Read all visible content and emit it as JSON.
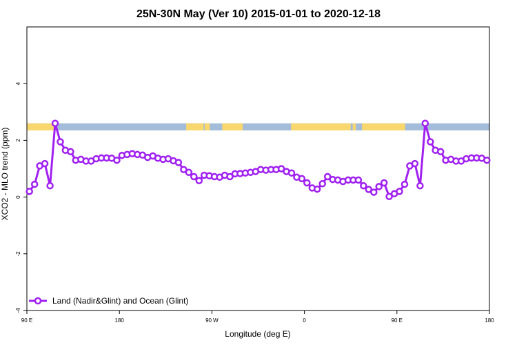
{
  "chart_data": {
    "type": "line",
    "title": "25N-30N May (Ver 10)   2015-01-01 to 2020-12-18",
    "xlabel": "Longitude (deg E)",
    "ylabel": "XCO2 - MLO trend (ppm)",
    "xlim": [
      90,
      540
    ],
    "ylim": [
      -4,
      6
    ],
    "x_ticks": [
      {
        "value": 90,
        "label": "90 E"
      },
      {
        "value": 180,
        "label": "180"
      },
      {
        "value": 270,
        "label": "90 W"
      },
      {
        "value": 360,
        "label": "0"
      },
      {
        "value": 450,
        "label": "90 E"
      },
      {
        "value": 540,
        "label": "180"
      }
    ],
    "y_ticks": [
      {
        "value": -4,
        "label": "-4"
      },
      {
        "value": -2,
        "label": "-2"
      },
      {
        "value": 0,
        "label": "0"
      },
      {
        "value": 2,
        "label": "2"
      },
      {
        "value": 4,
        "label": "4"
      }
    ],
    "legend": {
      "position": "bottom-left",
      "label": "Land (Nadir&Glint) and Ocean (Glint)"
    },
    "colors": {
      "series": "#a020f0",
      "land": "#f7d76e",
      "ocean": "#a3bcd9"
    },
    "land_bands": [
      [
        90,
        118
      ],
      [
        245,
        262
      ],
      [
        263,
        268
      ],
      [
        280,
        300
      ],
      [
        347,
        405
      ],
      [
        407,
        410
      ],
      [
        416,
        458
      ]
    ],
    "series": [
      {
        "name": "Land (Nadir&Glint) and Ocean (Glint)",
        "x": [
          92.5,
          97.5,
          102.5,
          107.5,
          112.5,
          117.5,
          122.5,
          127.5,
          132.5,
          137.5,
          142.5,
          147.5,
          152.5,
          157.5,
          162.5,
          167.5,
          172.5,
          177.5,
          182.5,
          187.5,
          192.5,
          197.5,
          202.5,
          207.5,
          212.5,
          217.5,
          222.5,
          227.5,
          232.5,
          237.5,
          242.5,
          247.5,
          252.5,
          257.5,
          262.5,
          267.5,
          272.5,
          277.5,
          282.5,
          287.5,
          292.5,
          297.5,
          302.5,
          307.5,
          312.5,
          317.5,
          322.5,
          327.5,
          332.5,
          337.5,
          342.5,
          347.5,
          352.5,
          357.5,
          362.5,
          367.5,
          372.5,
          377.5,
          382.5,
          387.5,
          392.5,
          397.5,
          402.5,
          407.5,
          412.5,
          417.5,
          422.5,
          427.5,
          432.5,
          437.5,
          442.5,
          447.5,
          452.5,
          457.5,
          462.5,
          467.5,
          472.5,
          477.5,
          482.5,
          487.5,
          492.5,
          497.5,
          502.5,
          507.5,
          512.5,
          517.5,
          522.5,
          527.5,
          532.5,
          537.5
        ],
        "values": [
          0.2,
          0.45,
          1.1,
          1.18,
          0.4,
          2.6,
          1.95,
          1.65,
          1.6,
          1.3,
          1.33,
          1.27,
          1.27,
          1.35,
          1.38,
          1.38,
          1.37,
          1.3,
          1.47,
          1.5,
          1.53,
          1.5,
          1.48,
          1.4,
          1.45,
          1.37,
          1.33,
          1.35,
          1.28,
          1.22,
          0.97,
          0.87,
          0.72,
          0.58,
          0.77,
          0.75,
          0.72,
          0.7,
          0.77,
          0.72,
          0.82,
          0.83,
          0.85,
          0.87,
          0.9,
          0.97,
          0.95,
          0.97,
          0.97,
          1.0,
          0.9,
          0.85,
          0.7,
          0.65,
          0.5,
          0.32,
          0.28,
          0.47,
          0.72,
          0.62,
          0.6,
          0.55,
          0.6,
          0.6,
          0.6,
          0.4,
          0.27,
          0.17,
          0.37,
          0.5,
          0.02,
          0.12,
          0.2,
          0.45,
          1.1,
          1.18,
          0.4,
          2.6,
          1.95,
          1.65,
          1.6,
          1.3,
          1.33,
          1.27,
          1.27,
          1.35,
          1.38,
          1.38,
          1.37,
          1.3
        ]
      }
    ]
  }
}
